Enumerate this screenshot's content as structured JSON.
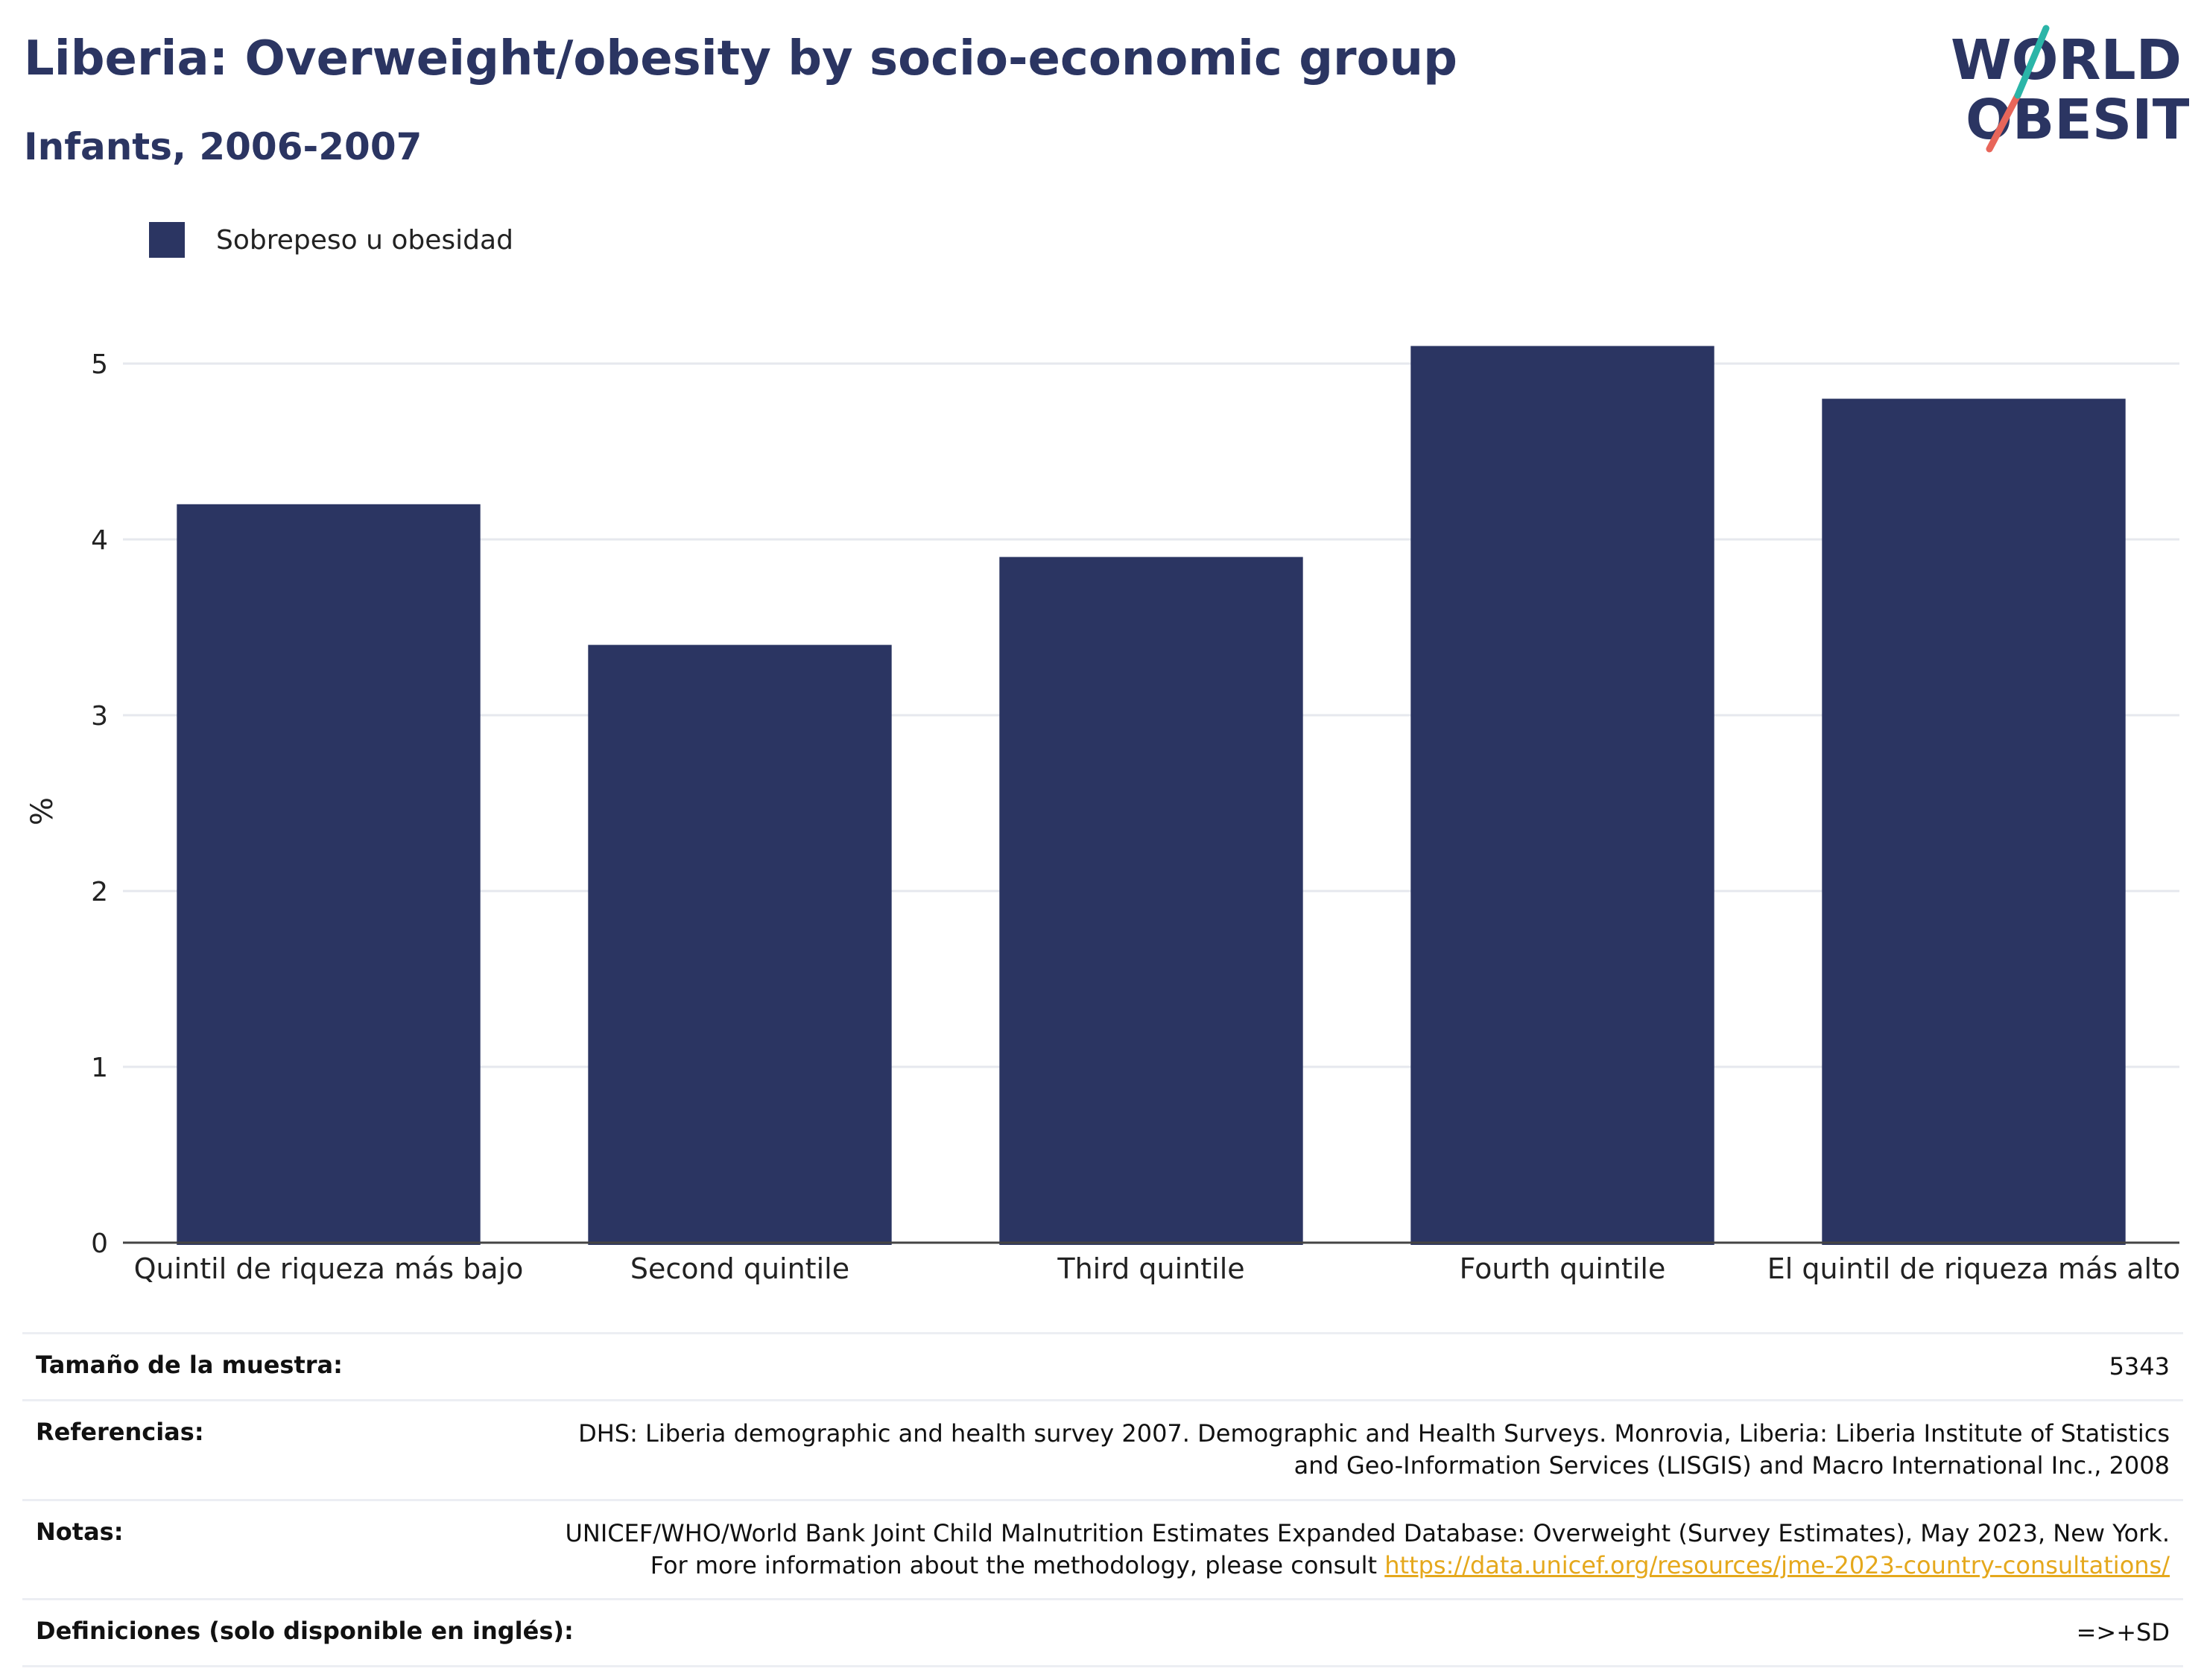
{
  "header": {
    "title": "Liberia: Overweight/obesity by socio-economic group",
    "subtitle": "Infants, 2006-2007"
  },
  "logo": {
    "line1": "WORLD",
    "line2": "OBESITY"
  },
  "colors": {
    "bar": "#2b3562",
    "title": "#2b3562",
    "grid": "#e6e8ee",
    "accent_teal": "#2bb5a8",
    "accent_red": "#e8665a",
    "link": "#e5a81c"
  },
  "chart_data": {
    "type": "bar",
    "categories": [
      "Quintil de riqueza más bajo",
      "Second quintile",
      "Third quintile",
      "Fourth quintile",
      "El quintil de riqueza más alto"
    ],
    "series": [
      {
        "name": "Sobrepeso u obesidad",
        "values": [
          4.2,
          3.4,
          3.9,
          5.1,
          4.8
        ]
      }
    ],
    "ylabel": "%",
    "ylim": [
      0,
      5.5
    ],
    "yticks": [
      0,
      1,
      2,
      3,
      4,
      5
    ],
    "grid": true,
    "legend": "top-left"
  },
  "info": {
    "sample_label": "Tamaño de la muestra:",
    "sample_value": "5343",
    "refs_label": "Referencias:",
    "refs_value": "DHS: Liberia demographic and health survey 2007. Demographic and Health Surveys. Monrovia, Liberia: Liberia Institute of Statistics and Geo-Information Services (LISGIS) and Macro International Inc., 2008",
    "notes_label": "Notas:",
    "notes_text": "UNICEF/WHO/World Bank Joint Child Malnutrition Estimates Expanded Database: Overweight (Survey Estimates), May 2023, New York. For more information about the methodology, please consult ",
    "notes_link": "https://data.unicef.org/resources/jme-2023-country-consultations/",
    "defs_label": "Definiciones (solo disponible en inglés):",
    "defs_value": "=>+SD"
  }
}
